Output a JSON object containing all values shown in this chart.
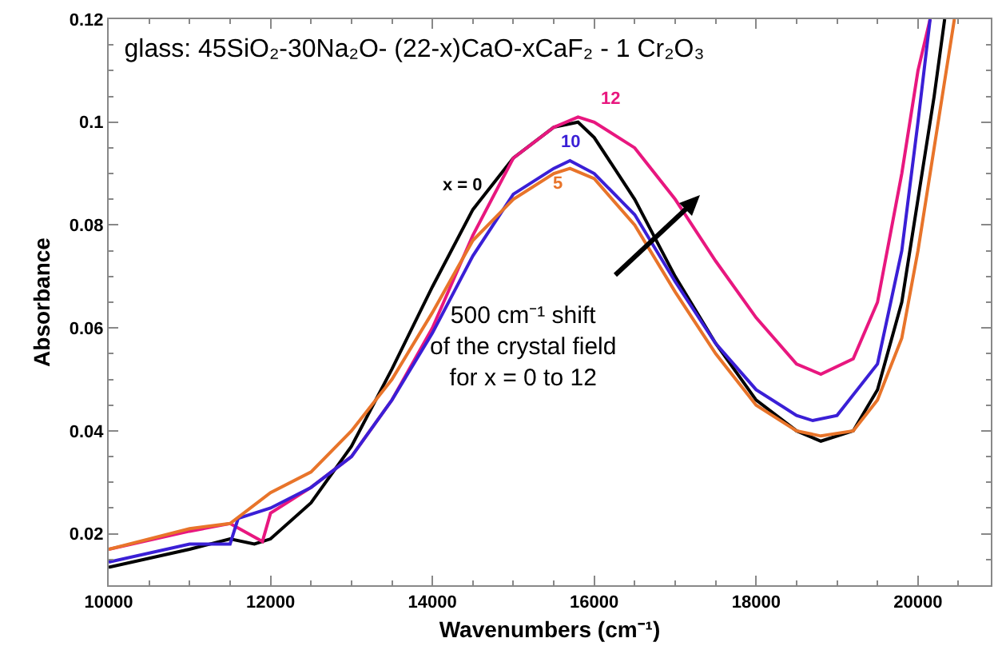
{
  "chart_data": {
    "type": "line",
    "title": "glass: 45SiO₂-30Na₂O- (22-x)CaO-xCaF₂ - 1 Cr₂O₃",
    "xlabel": "Wavenumbers (cm⁻¹)",
    "ylabel": "Absorbance",
    "xlim": [
      10000,
      20900
    ],
    "xticks": [
      10000,
      12000,
      14000,
      16000,
      18000,
      20000
    ],
    "ylim": [
      0.01,
      0.12
    ],
    "yticks": [
      0.02,
      0.04,
      0.06,
      0.08,
      0.1,
      0.12
    ],
    "grid": false,
    "legend": false,
    "marker": "none",
    "line_style": "solid",
    "series": [
      {
        "name": "x = 0",
        "color": "#000000",
        "x": [
          10000,
          11000,
          11500,
          11800,
          12000,
          12500,
          13000,
          13500,
          14000,
          14500,
          15000,
          15500,
          15800,
          16000,
          16500,
          17000,
          17500,
          18000,
          18500,
          18800,
          19200,
          19500,
          19800,
          20000,
          20200,
          20330
        ],
        "values": [
          0.0135,
          0.017,
          0.019,
          0.018,
          0.019,
          0.026,
          0.037,
          0.052,
          0.068,
          0.083,
          0.093,
          0.099,
          0.1,
          0.097,
          0.085,
          0.07,
          0.057,
          0.046,
          0.04,
          0.038,
          0.04,
          0.048,
          0.065,
          0.085,
          0.105,
          0.12
        ]
      },
      {
        "name": "12",
        "color": "#e8177f",
        "x": [
          10000,
          11000,
          11500,
          11900,
          12000,
          12500,
          13000,
          13500,
          14000,
          14500,
          15000,
          15500,
          15800,
          16000,
          16500,
          17000,
          17500,
          18000,
          18500,
          18800,
          19200,
          19500,
          19800,
          20000,
          20150
        ],
        "values": [
          0.017,
          0.0205,
          0.022,
          0.0185,
          0.024,
          0.029,
          0.035,
          0.046,
          0.06,
          0.078,
          0.093,
          0.099,
          0.101,
          0.1,
          0.095,
          0.085,
          0.073,
          0.062,
          0.053,
          0.051,
          0.054,
          0.065,
          0.09,
          0.11,
          0.12
        ]
      },
      {
        "name": "10",
        "color": "#3a1fd6",
        "x": [
          10000,
          11000,
          11500,
          11600,
          12000,
          12500,
          13000,
          13500,
          14000,
          14500,
          15000,
          15500,
          15700,
          16000,
          16500,
          17000,
          17500,
          18000,
          18500,
          18700,
          19000,
          19500,
          19800,
          20000,
          20150
        ],
        "values": [
          0.0145,
          0.018,
          0.018,
          0.023,
          0.025,
          0.029,
          0.035,
          0.046,
          0.059,
          0.074,
          0.086,
          0.091,
          0.0925,
          0.09,
          0.082,
          0.069,
          0.057,
          0.048,
          0.043,
          0.042,
          0.043,
          0.053,
          0.075,
          0.1,
          0.12
        ]
      },
      {
        "name": "5",
        "color": "#e8742a",
        "x": [
          10000,
          11000,
          11500,
          12000,
          12500,
          13000,
          13500,
          14000,
          14500,
          15000,
          15500,
          15700,
          16000,
          16500,
          17000,
          17500,
          18000,
          18500,
          18800,
          19200,
          19500,
          19800,
          20000,
          20300,
          20450
        ],
        "values": [
          0.017,
          0.021,
          0.022,
          0.028,
          0.032,
          0.04,
          0.05,
          0.063,
          0.077,
          0.085,
          0.09,
          0.091,
          0.089,
          0.08,
          0.067,
          0.055,
          0.045,
          0.04,
          0.039,
          0.04,
          0.046,
          0.058,
          0.075,
          0.105,
          0.12
        ]
      }
    ],
    "annotations": [
      "500 cm⁻¹ shift\nof the crystal field\nfor x = 0 to 12"
    ]
  }
}
